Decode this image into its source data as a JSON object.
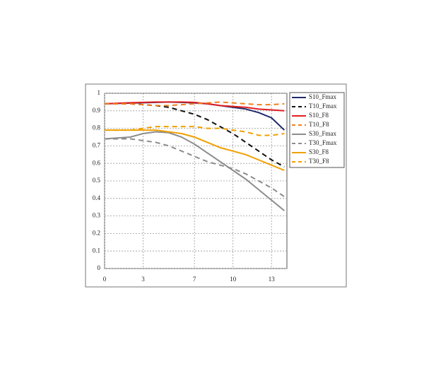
{
  "chart_data": {
    "type": "line",
    "x": [
      0,
      1,
      2,
      3,
      4,
      5,
      6,
      7,
      8,
      9,
      10,
      11,
      12,
      13,
      14
    ],
    "xlim": [
      0,
      14.2
    ],
    "xticks": [
      0,
      3,
      7,
      10,
      13
    ],
    "ylim": [
      0,
      1
    ],
    "yticks": [
      0,
      0.1,
      0.2,
      0.3,
      0.4,
      0.5,
      0.6,
      0.7,
      0.8,
      0.9,
      1
    ],
    "grid": true,
    "legend": "upper right",
    "series": [
      {
        "name": "S10_Fmax",
        "color": "#1f2a6b",
        "style": "solid",
        "values": [
          0.94,
          0.942,
          0.944,
          0.946,
          0.948,
          0.95,
          0.948,
          0.945,
          0.94,
          0.93,
          0.92,
          0.91,
          0.89,
          0.86,
          0.79
        ]
      },
      {
        "name": "T10_Fmax",
        "color": "#111111",
        "style": "dashed",
        "values": [
          0.94,
          0.94,
          0.94,
          0.935,
          0.93,
          0.92,
          0.9,
          0.88,
          0.85,
          0.81,
          0.77,
          0.72,
          0.67,
          0.62,
          0.58
        ]
      },
      {
        "name": "S10_F8",
        "color": "#e02020",
        "style": "solid",
        "values": [
          0.94,
          0.943,
          0.946,
          0.948,
          0.95,
          0.95,
          0.95,
          0.948,
          0.94,
          0.93,
          0.925,
          0.92,
          0.91,
          0.905,
          0.9
        ]
      },
      {
        "name": "T10_F8",
        "color": "#f08020",
        "style": "dashed",
        "values": [
          0.94,
          0.94,
          0.94,
          0.935,
          0.93,
          0.93,
          0.935,
          0.94,
          0.945,
          0.95,
          0.945,
          0.94,
          0.935,
          0.935,
          0.94
        ]
      },
      {
        "name": "S30_Fmax",
        "color": "#8c8c8c",
        "style": "solid",
        "values": [
          0.74,
          0.745,
          0.75,
          0.77,
          0.78,
          0.775,
          0.75,
          0.71,
          0.66,
          0.61,
          0.56,
          0.51,
          0.45,
          0.39,
          0.33
        ]
      },
      {
        "name": "T30_Fmax",
        "color": "#8c8c8c",
        "style": "dashed",
        "values": [
          0.74,
          0.74,
          0.74,
          0.73,
          0.72,
          0.7,
          0.67,
          0.64,
          0.61,
          0.59,
          0.57,
          0.54,
          0.5,
          0.46,
          0.41
        ]
      },
      {
        "name": "S30_F8",
        "color": "#f0a000",
        "style": "solid",
        "values": [
          0.79,
          0.79,
          0.79,
          0.79,
          0.79,
          0.78,
          0.77,
          0.75,
          0.72,
          0.69,
          0.67,
          0.65,
          0.62,
          0.59,
          0.56
        ]
      },
      {
        "name": "T30_F8",
        "color": "#f0a000",
        "style": "dashed",
        "values": [
          0.79,
          0.79,
          0.79,
          0.8,
          0.81,
          0.81,
          0.81,
          0.81,
          0.8,
          0.8,
          0.79,
          0.78,
          0.76,
          0.76,
          0.77
        ]
      }
    ]
  }
}
